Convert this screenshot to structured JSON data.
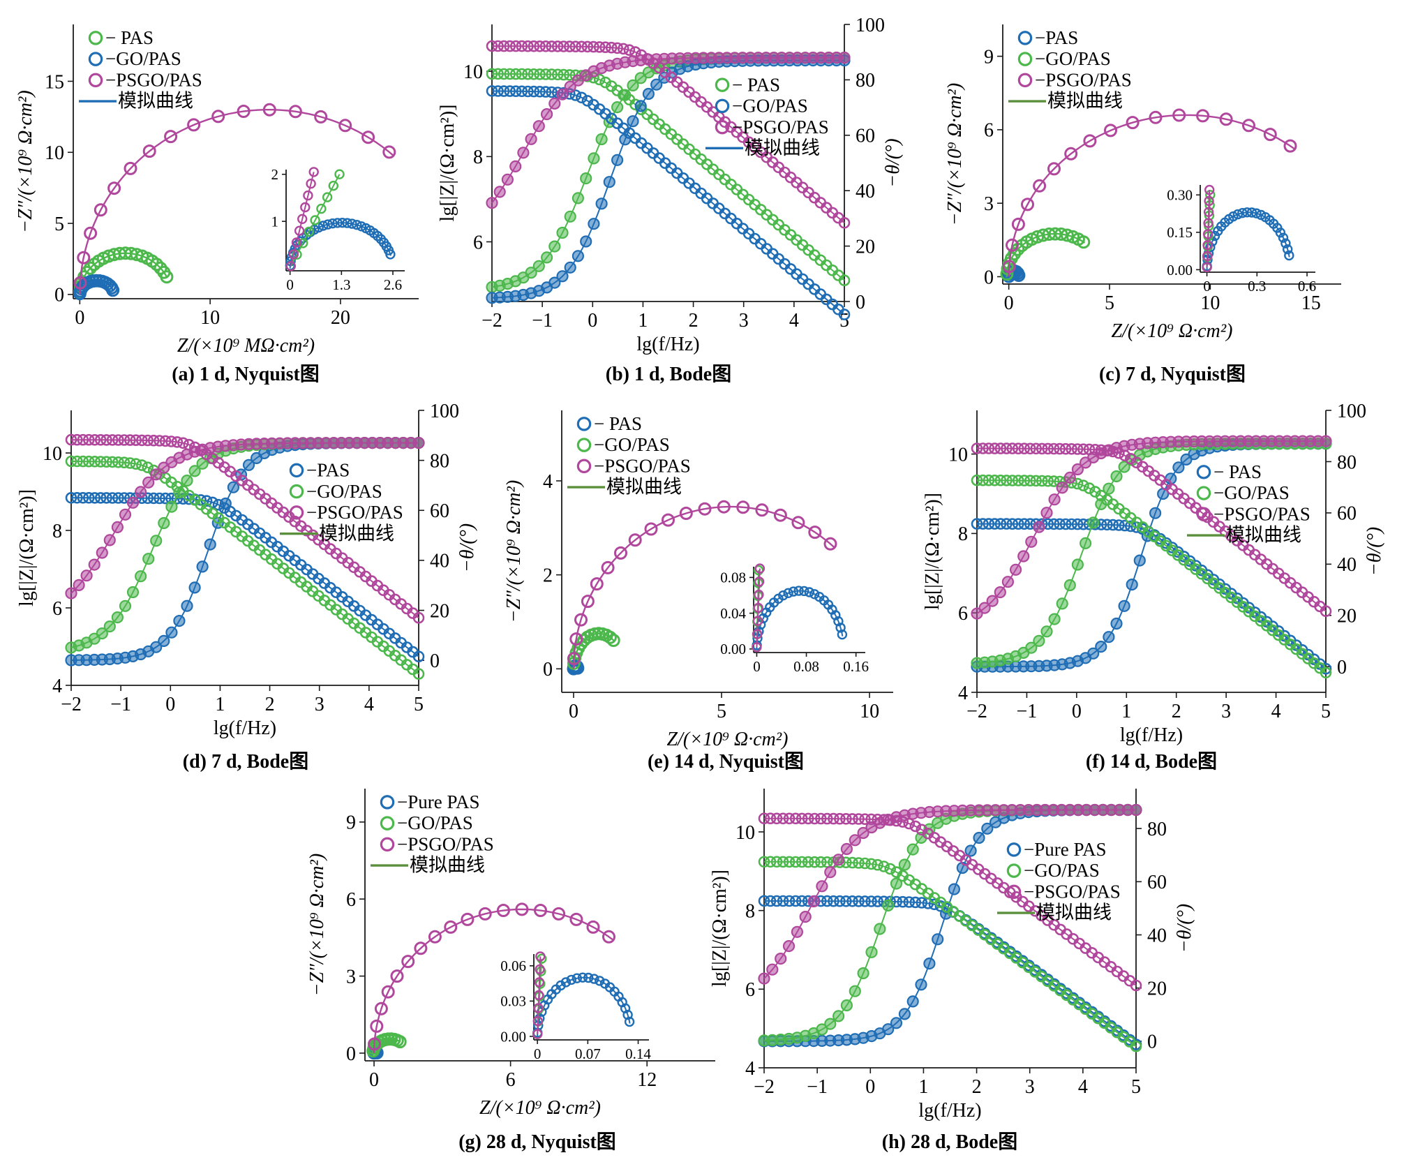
{
  "colors": {
    "blue": "#1f6db5",
    "green": "#4cb84c",
    "magenta": "#b0479c",
    "axis": "#1a1a1a"
  },
  "chart_data": [
    {
      "id": "a",
      "type": "scatter",
      "caption": "(a) 1 d, Nyquist图",
      "xlabel": "Z/(×10⁹ MΩ·cm²)",
      "ylabel": "−Z″/(×10⁹ Ω·cm²)",
      "xlim": [
        -0.5,
        26
      ],
      "ylim": [
        -0.3,
        19
      ],
      "xticks": [
        0,
        10,
        20
      ],
      "yticks": [
        0,
        5,
        10,
        15
      ],
      "legend": {
        "position": "top-left",
        "entries": [
          "− PAS",
          "−GO/PAS",
          "−PSGO/PAS",
          "模拟曲线"
        ],
        "marker_colors": [
          "#4cb84c",
          "#1f6db5",
          "#b0479c"
        ],
        "line_color": "#1f6db5"
      },
      "series": [
        {
          "name": "PAS",
          "color": "green",
          "kind": "arc",
          "center": 3.5,
          "radius": 3.5,
          "height": 2.9,
          "t": [
            0.02,
            0.14
          ],
          "n": 22
        },
        {
          "name": "GO/PAS",
          "color": "blue",
          "kind": "arc",
          "center": 1.3,
          "radius": 1.3,
          "height": 0.97,
          "t": [
            0.02,
            0.1
          ],
          "n": 16
        },
        {
          "name": "PSGO/PAS",
          "color": "magenta",
          "kind": "arc",
          "center": 14.5,
          "radius": 14.5,
          "height": 13.0,
          "t": [
            0.02,
            0.28
          ],
          "n": 17
        }
      ],
      "inset": {
        "xlim": [
          -0.1,
          2.9
        ],
        "ylim": [
          -0.05,
          2.1
        ],
        "xticks": [
          0,
          1.3,
          2.6
        ],
        "yticks": [
          1,
          2
        ],
        "series": [
          {
            "name": "GO/PAS",
            "color": "blue",
            "kind": "arc",
            "center": 1.3,
            "radius": 1.3,
            "height": 0.97,
            "t": [
              0.02,
              0.1
            ],
            "n": 30
          },
          {
            "name": "PAS",
            "color": "green",
            "kind": "line",
            "x0": 0.02,
            "x1": 1.25,
            "y0": 0.05,
            "y1": 2.0,
            "n": 9
          },
          {
            "name": "PSGO/PAS",
            "color": "magenta",
            "kind": "line",
            "x0": 0.02,
            "x1": 0.6,
            "y0": 0.05,
            "y1": 2.05,
            "n": 9
          }
        ]
      }
    },
    {
      "id": "b",
      "type": "line",
      "caption": "(b) 1 d, Bode图",
      "xlabel": "lg(f/Hz)",
      "ylabel": "lg[|Z|/(Ω·cm²)]",
      "y2label": "−θ/(°)",
      "xlim": [
        -2,
        5
      ],
      "ylim": [
        4.6,
        11.1
      ],
      "y2lim": [
        0,
        100
      ],
      "xticks": [
        -2,
        -1,
        0,
        1,
        2,
        3,
        4,
        5
      ],
      "yticks": [
        6,
        8,
        10
      ],
      "y2ticks": [
        0,
        20,
        40,
        60,
        80,
        100
      ],
      "legend": {
        "position": "center-right",
        "entries": [
          "− PAS",
          "−GO/PAS",
          "−PSGO/PAS",
          "模拟曲线"
        ],
        "marker_colors": [
          "#4cb84c",
          "#1f6db5",
          "#b0479c"
        ],
        "line_color": "#1f6db5"
      },
      "series": [
        {
          "name": "PAS",
          "color": "green",
          "impedance": {
            "plateau": 9.8,
            "corner": 0.15
          },
          "phase": {
            "low": 4,
            "mid": -0.1,
            "width": 0.45,
            "high": 88
          }
        },
        {
          "name": "GO/PAS",
          "color": "blue",
          "impedance": {
            "plateau": 9.4,
            "corner": -0.25
          },
          "phase": {
            "low": 1,
            "mid": 0.35,
            "width": 0.42,
            "high": 87
          }
        },
        {
          "name": "PSGO/PAS",
          "color": "magenta",
          "impedance": {
            "plateau": 10.45,
            "corner": 0.85
          },
          "phase": {
            "low": 18,
            "mid": -1.4,
            "width": 0.55,
            "high": 88
          }
        }
      ]
    },
    {
      "id": "c",
      "type": "scatter",
      "caption": "(c) 7 d, Nyquist图",
      "xlabel": "Z/(×10⁹ Ω·cm²)",
      "ylabel": "−Z″/(×10⁹ Ω·cm²)",
      "xlim": [
        -0.3,
        16.5
      ],
      "ylim": [
        -0.3,
        10.3
      ],
      "xticks": [
        0,
        5,
        10,
        15
      ],
      "yticks": [
        0,
        3,
        6,
        9
      ],
      "legend": {
        "position": "top-left",
        "entries": [
          "−PAS",
          "−GO/PAS",
          "−PSGO/PAS",
          "模拟曲线"
        ],
        "marker_colors": [
          "#1f6db5",
          "#4cb84c",
          "#b0479c"
        ],
        "line_color": "#5a8f3c"
      },
      "series": [
        {
          "name": "PAS",
          "color": "blue",
          "kind": "arc",
          "center": 0.25,
          "radius": 0.25,
          "height": 0.23,
          "t": [
            0.02,
            0.08
          ],
          "n": 8
        },
        {
          "name": "GO/PAS",
          "color": "green",
          "kind": "arc",
          "center": 2.3,
          "radius": 2.4,
          "height": 1.75,
          "t": [
            0.02,
            0.3
          ],
          "n": 18
        },
        {
          "name": "PSGO/PAS",
          "color": "magenta",
          "kind": "arc",
          "center": 8.8,
          "radius": 8.8,
          "height": 6.6,
          "t": [
            0.02,
            0.3
          ],
          "n": 17
        }
      ],
      "inset": {
        "xlim": [
          -0.04,
          0.65
        ],
        "ylim": [
          -0.01,
          0.34
        ],
        "xticks": [
          0,
          0.3,
          0.6
        ],
        "yticks": [
          0.0,
          0.15,
          0.3
        ],
        "series": [
          {
            "name": "PAS",
            "color": "blue",
            "kind": "arc",
            "center": 0.25,
            "radius": 0.25,
            "height": 0.23,
            "t": [
              0.02,
              0.08
            ],
            "n": 26
          },
          {
            "name": "GO/PAS",
            "color": "green",
            "kind": "line",
            "x0": 0.0,
            "x1": 0.02,
            "y0": 0.01,
            "y1": 0.3,
            "n": 8
          },
          {
            "name": "PSGO/PAS",
            "color": "magenta",
            "kind": "line",
            "x0": 0.0,
            "x1": 0.015,
            "y0": 0.01,
            "y1": 0.32,
            "n": 8
          }
        ]
      }
    },
    {
      "id": "d",
      "type": "line",
      "caption": "(d) 7 d, Bode图",
      "xlabel": "lg(f/Hz)",
      "ylabel": "lg[|Z|/(Ω·cm²)]",
      "y2label": "−θ/(°)",
      "xlim": [
        -2,
        5
      ],
      "ylim": [
        4,
        11.1
      ],
      "y2lim": [
        -10,
        100
      ],
      "xticks": [
        -2,
        -1,
        0,
        1,
        2,
        3,
        4,
        5
      ],
      "yticks": [
        4,
        6,
        8,
        10
      ],
      "y2ticks": [
        0,
        20,
        40,
        60,
        80,
        100
      ],
      "legend": {
        "position": "center-right",
        "entries": [
          "−PAS",
          "−GO/PAS",
          "−PSGO/PAS",
          "模拟曲线"
        ],
        "marker_colors": [
          "#1f6db5",
          "#4cb84c",
          "#b0479c"
        ],
        "line_color": "#5a8f3c"
      },
      "series": [
        {
          "name": "PAS",
          "color": "blue",
          "impedance": {
            "plateau": 8.7,
            "corner": 0.9
          },
          "phase": {
            "low": 0,
            "mid": 0.75,
            "width": 0.38,
            "high": 87
          }
        },
        {
          "name": "GO/PAS",
          "color": "green",
          "impedance": {
            "plateau": 9.65,
            "corner": -0.5
          },
          "phase": {
            "low": 3,
            "mid": -0.35,
            "width": 0.45,
            "high": 87
          }
        },
        {
          "name": "PSGO/PAS",
          "color": "magenta",
          "impedance": {
            "plateau": 10.2,
            "corner": 0.4
          },
          "phase": {
            "low": 14,
            "mid": -1.15,
            "width": 0.55,
            "high": 87
          }
        }
      ]
    },
    {
      "id": "e",
      "type": "scatter",
      "caption": "(e) 14 d, Nyquist图",
      "xlabel": "Z/(×10⁹ Ω·cm²)",
      "ylabel": "−Z″/(×10⁹ Ω·cm²)",
      "xlim": [
        -0.4,
        10.8
      ],
      "ylim": [
        -0.5,
        5.5
      ],
      "xticks": [
        0,
        5,
        10
      ],
      "yticks": [
        0,
        2,
        4
      ],
      "legend": {
        "position": "top-left",
        "entries": [
          "− PAS",
          "−GO/PAS",
          "−PSGO/PAS",
          "模拟曲线"
        ],
        "marker_colors": [
          "#1f6db5",
          "#4cb84c",
          "#b0479c"
        ],
        "line_color": "#5a8f3c"
      },
      "series": [
        {
          "name": "PAS",
          "color": "blue",
          "kind": "arc",
          "center": 0.07,
          "radius": 0.07,
          "height": 0.065,
          "t": [
            0.02,
            0.08
          ],
          "n": 6
        },
        {
          "name": "GO/PAS",
          "color": "green",
          "kind": "arc",
          "center": 0.85,
          "radius": 0.85,
          "height": 0.75,
          "t": [
            0.05,
            0.3
          ],
          "n": 14
        },
        {
          "name": "PSGO/PAS",
          "color": "magenta",
          "kind": "arc",
          "center": 5.3,
          "radius": 5.3,
          "height": 3.45,
          "t": [
            0.02,
            0.28
          ],
          "n": 19
        }
      ],
      "inset": {
        "xlim": [
          -0.005,
          0.175
        ],
        "ylim": [
          -0.004,
          0.092
        ],
        "xticks": [
          0,
          0.08,
          0.16
        ],
        "yticks": [
          0.0,
          0.04,
          0.08
        ],
        "series": [
          {
            "name": "PAS",
            "color": "blue",
            "kind": "arc",
            "center": 0.07,
            "radius": 0.07,
            "height": 0.065,
            "t": [
              0.02,
              0.08
            ],
            "n": 24
          },
          {
            "name": "GO/PAS",
            "color": "green",
            "kind": "line",
            "x0": 0.0,
            "x1": 0.003,
            "y0": 0.002,
            "y1": 0.088,
            "n": 7
          },
          {
            "name": "PSGO/PAS",
            "color": "magenta",
            "kind": "line",
            "x0": 0.0,
            "x1": 0.005,
            "y0": 0.002,
            "y1": 0.09,
            "n": 7
          }
        ]
      }
    },
    {
      "id": "f",
      "type": "line",
      "caption": "(f) 14 d, Bode图",
      "xlabel": "lg(f/Hz)",
      "ylabel": "lg[|Z|/(Ω·cm²)]",
      "y2label": "−θ/(°)",
      "xlim": [
        -2,
        5
      ],
      "ylim": [
        4,
        11.1
      ],
      "y2lim": [
        -10,
        100
      ],
      "xticks": [
        -2,
        -1,
        0,
        1,
        2,
        3,
        4,
        5
      ],
      "yticks": [
        4,
        6,
        8,
        10
      ],
      "y2ticks": [
        0,
        20,
        40,
        60,
        80,
        100
      ],
      "legend": {
        "position": "center-right",
        "entries": [
          "− PAS",
          "−GO/PAS",
          "−PSGO/PAS",
          "模拟曲线"
        ],
        "marker_colors": [
          "#1f6db5",
          "#4cb84c",
          "#b0479c"
        ],
        "line_color": "#5a8f3c"
      },
      "series": [
        {
          "name": "PAS",
          "color": "blue",
          "impedance": {
            "plateau": 8.1,
            "corner": 1.35
          },
          "phase": {
            "low": 0,
            "mid": 1.3,
            "width": 0.35,
            "high": 87
          }
        },
        {
          "name": "GO/PAS",
          "color": "green",
          "impedance": {
            "plateau": 9.2,
            "corner": 0.15
          },
          "phase": {
            "low": 1,
            "mid": 0.1,
            "width": 0.4,
            "high": 87
          }
        },
        {
          "name": "PSGO/PAS",
          "color": "magenta",
          "impedance": {
            "plateau": 10.0,
            "corner": 0.9
          },
          "phase": {
            "low": 14,
            "mid": -0.85,
            "width": 0.5,
            "high": 88
          }
        }
      ]
    },
    {
      "id": "g",
      "type": "scatter",
      "caption": "(g) 28 d, Nyquist图",
      "xlabel": "Z/(×10⁹ Ω·cm²)",
      "ylabel": "−Z″/(×10⁹ Ω·cm²)",
      "xlim": [
        -0.4,
        15
      ],
      "ylim": [
        -0.3,
        10.3
      ],
      "xticks": [
        0,
        6,
        12
      ],
      "yticks": [
        0,
        3,
        6,
        9
      ],
      "legend": {
        "position": "top-left",
        "entries": [
          "−Pure PAS",
          "−GO/PAS",
          "−PSGO/PAS",
          "模拟曲线"
        ],
        "marker_colors": [
          "#1f6db5",
          "#4cb84c",
          "#b0479c"
        ],
        "line_color": "#5a8f3c"
      },
      "series": [
        {
          "name": "Pure PAS",
          "color": "blue",
          "kind": "arc",
          "center": 0.065,
          "radius": 0.065,
          "height": 0.05,
          "t": [
            0.02,
            0.08
          ],
          "n": 6
        },
        {
          "name": "GO/PAS",
          "color": "green",
          "kind": "arc",
          "center": 0.7,
          "radius": 0.75,
          "height": 0.55,
          "t": [
            0.05,
            0.3
          ],
          "n": 12
        },
        {
          "name": "PSGO/PAS",
          "color": "magenta",
          "kind": "arc",
          "center": 6.5,
          "radius": 6.5,
          "height": 5.6,
          "t": [
            0.02,
            0.3
          ],
          "n": 18
        }
      ],
      "inset": {
        "xlim": [
          -0.005,
          0.155
        ],
        "ylim": [
          -0.003,
          0.07
        ],
        "xticks": [
          0,
          0.07,
          0.14
        ],
        "yticks": [
          0.0,
          0.03,
          0.06
        ],
        "series": [
          {
            "name": "Pure PAS",
            "color": "blue",
            "kind": "arc",
            "center": 0.065,
            "radius": 0.065,
            "height": 0.05,
            "t": [
              0.02,
              0.08
            ],
            "n": 24
          },
          {
            "name": "GO/PAS",
            "color": "green",
            "kind": "line",
            "x0": 0.0,
            "x1": 0.006,
            "y0": 0.002,
            "y1": 0.066,
            "n": 7
          },
          {
            "name": "PSGO/PAS",
            "color": "magenta",
            "kind": "line",
            "x0": 0.0,
            "x1": 0.004,
            "y0": 0.002,
            "y1": 0.068,
            "n": 7
          }
        ]
      }
    },
    {
      "id": "h",
      "type": "line",
      "caption": "(h) 28 d, Bode图",
      "xlabel": "lg(f/Hz)",
      "ylabel": "lg[|Z|/(Ω·cm²)]",
      "y2label": "−θ/(°)",
      "xlim": [
        -2,
        5
      ],
      "ylim": [
        4,
        11.1
      ],
      "y2lim": [
        -10,
        95
      ],
      "xticks": [
        -2,
        -1,
        0,
        1,
        2,
        3,
        4,
        5
      ],
      "yticks": [
        4,
        6,
        8,
        10
      ],
      "y2ticks": [
        0,
        20,
        40,
        60,
        80
      ],
      "legend": {
        "position": "center-right",
        "entries": [
          "−Pure PAS",
          "−GO/PAS",
          "−PSGO/PAS",
          "模拟曲线"
        ],
        "marker_colors": [
          "#1f6db5",
          "#4cb84c",
          "#b0479c"
        ],
        "line_color": "#5a8f3c"
      },
      "series": [
        {
          "name": "Pure PAS",
          "color": "blue",
          "impedance": {
            "plateau": 8.1,
            "corner": 1.35
          },
          "phase": {
            "low": 0,
            "mid": 1.35,
            "width": 0.35,
            "high": 87
          }
        },
        {
          "name": "GO/PAS",
          "color": "green",
          "impedance": {
            "plateau": 9.1,
            "corner": 0.3
          },
          "phase": {
            "low": 0,
            "mid": 0.2,
            "width": 0.38,
            "high": 87
          }
        },
        {
          "name": "PSGO/PAS",
          "color": "magenta",
          "impedance": {
            "plateau": 10.2,
            "corner": 0.75
          },
          "phase": {
            "low": 12,
            "mid": -1.15,
            "width": 0.5,
            "high": 87
          }
        }
      ]
    }
  ]
}
